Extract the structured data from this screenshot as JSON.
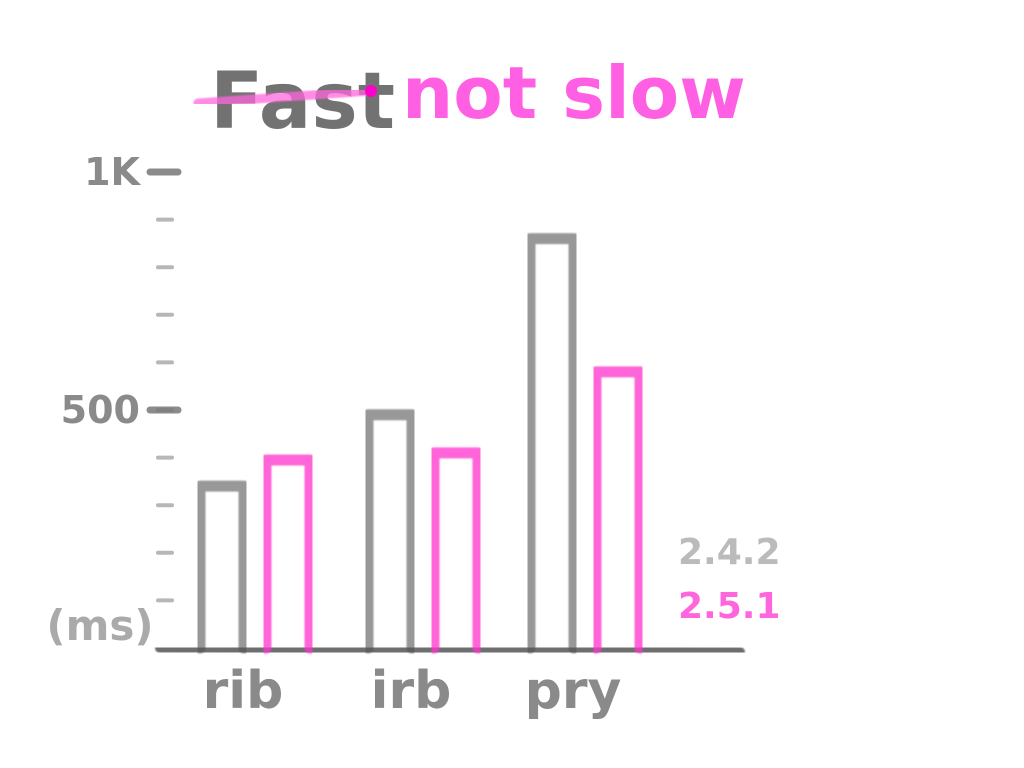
{
  "chart_data": {
    "type": "bar",
    "title_struck": "Fast",
    "title_main": "not slow",
    "ylabel": "(ms)",
    "yticks": [
      {
        "value": 500,
        "label": "500"
      },
      {
        "value": 1000,
        "label": "1K"
      }
    ],
    "ylim": [
      0,
      1000
    ],
    "minor_tick_step": 100,
    "categories": [
      "rib",
      "irb",
      "pry"
    ],
    "series": [
      {
        "name": "2.4.2",
        "color": "#555555",
        "values": [
          340,
          490,
          860
        ]
      },
      {
        "name": "2.5.1",
        "color": "#ff33cc",
        "values": [
          395,
          410,
          580
        ]
      }
    ],
    "legend_position": "right",
    "grid": false
  }
}
